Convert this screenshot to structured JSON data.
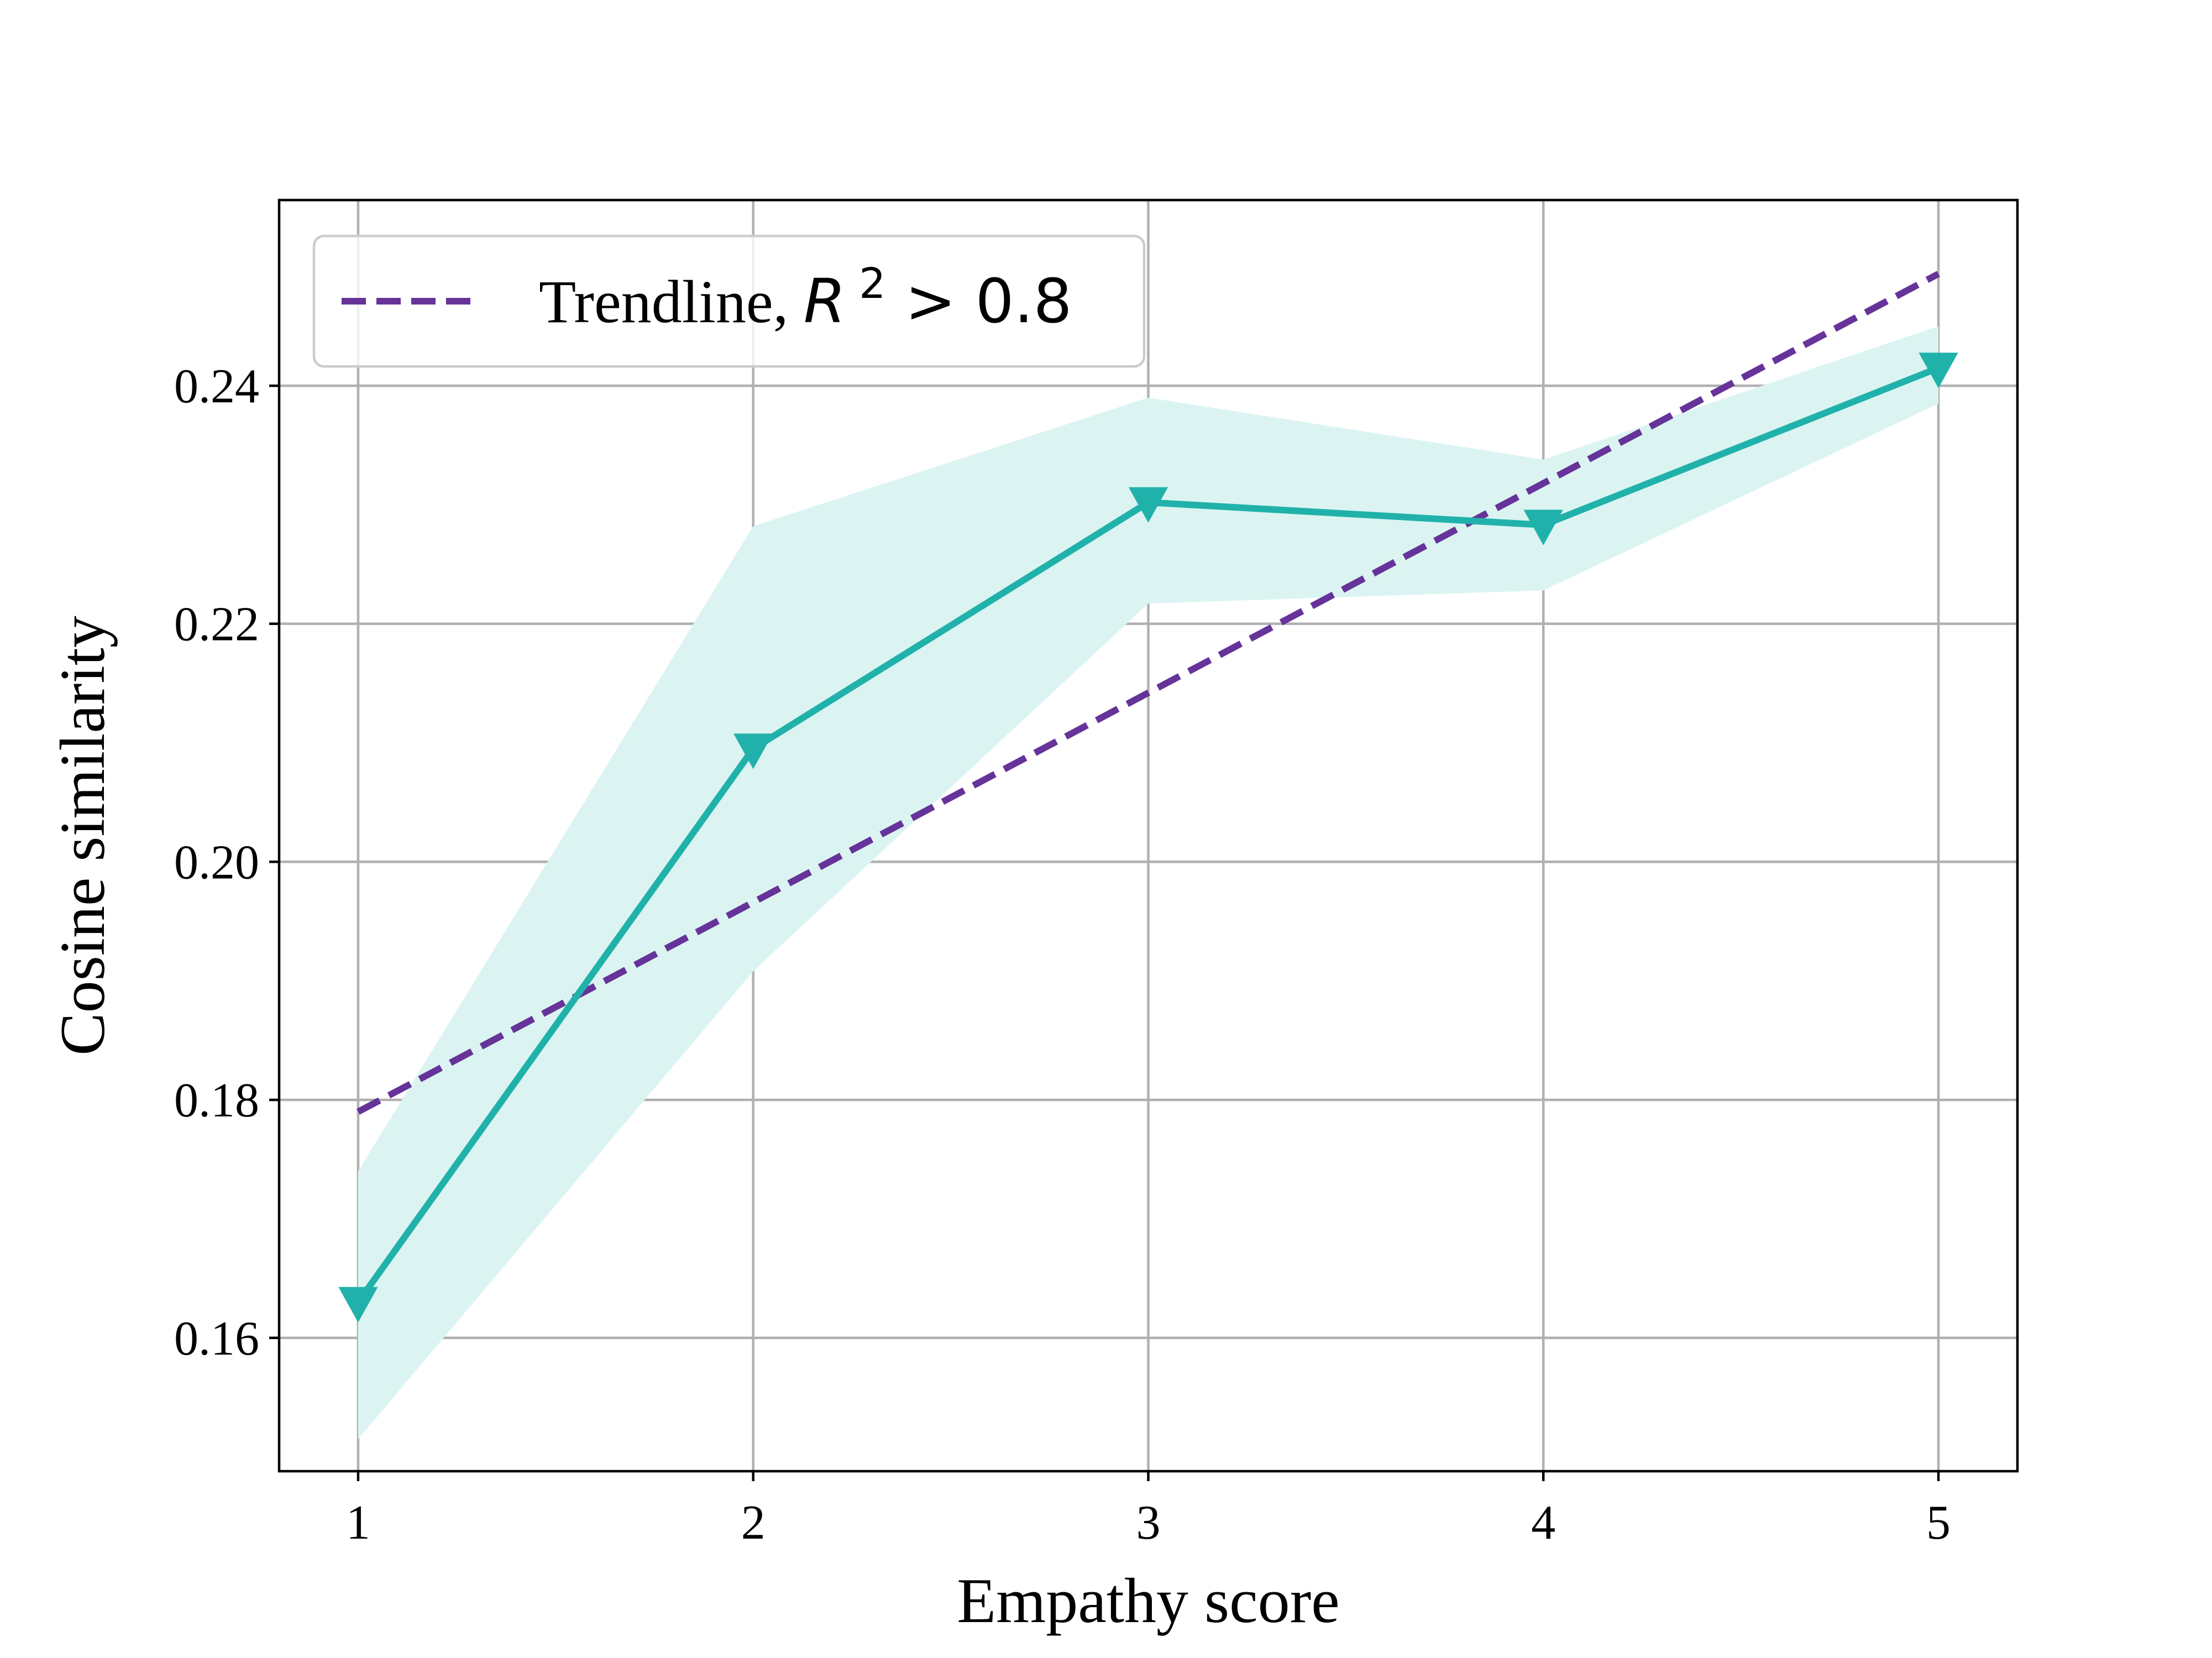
{
  "chart_data": {
    "type": "line",
    "title": "",
    "xlabel": "Empathy score",
    "ylabel": "Cosine similarity",
    "x": [
      1,
      2,
      3,
      4,
      5
    ],
    "xticks": [
      "1",
      "2",
      "3",
      "4",
      "5"
    ],
    "yticks": [
      "0.16",
      "0.18",
      "0.20",
      "0.22",
      "0.24"
    ],
    "xlim": [
      0.8,
      5.2
    ],
    "ylim": [
      0.1488,
      0.2556
    ],
    "grid": true,
    "legend_position": "top-left",
    "series": [
      {
        "values": [
          0.163,
          0.2095,
          0.2302,
          0.2283,
          0.2415
        ],
        "lower": [
          0.1515,
          0.1908,
          0.2217,
          0.2228,
          0.2385
        ],
        "upper": [
          0.174,
          0.2282,
          0.239,
          0.2338,
          0.245
        ],
        "color": "#20b2aa",
        "band_color": "#dbf4f2",
        "marker": "triangle-down"
      }
    ],
    "trendline": {
      "label": "Trendline, ",
      "math_symbol": "R",
      "math_exponent": "2",
      "math_rest": " > 0.8",
      "values": [
        0.179,
        0.1966,
        0.2142,
        0.2318,
        0.2494
      ],
      "color": "#663399",
      "style": "dashed"
    }
  }
}
